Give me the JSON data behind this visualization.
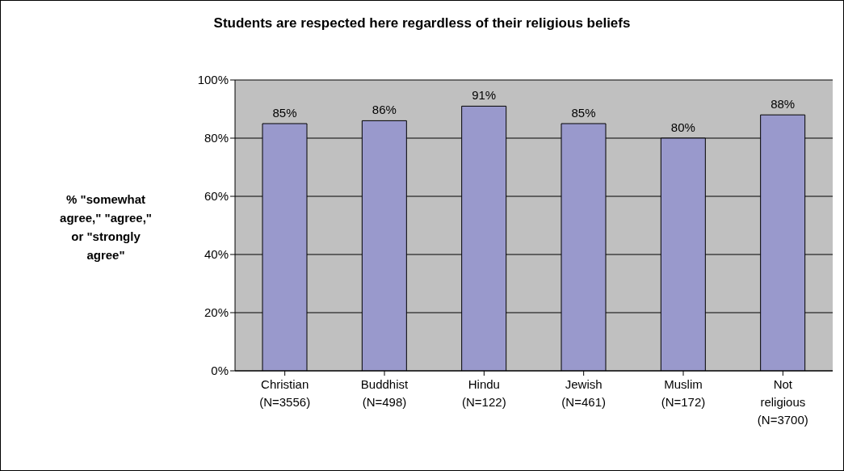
{
  "chart_data": {
    "type": "bar",
    "title": "Students are respected here regardless of their religious beliefs",
    "ylabel": "% \"somewhat\nagree,\" \"agree,\"\nor \"strongly\nagree\"",
    "categories": [
      "Christian\n(N=3556)",
      "Buddhist\n(N=498)",
      "Hindu\n(N=122)",
      "Jewish\n(N=461)",
      "Muslim\n(N=172)",
      "Not\nreligious\n(N=3700)"
    ],
    "values": [
      85,
      86,
      91,
      85,
      80,
      88
    ],
    "value_labels": [
      "85%",
      "86%",
      "91%",
      "85%",
      "80%",
      "88%"
    ],
    "color": "#9999cc",
    "ylim": [
      0,
      100
    ],
    "yticks": [
      {
        "value": 0,
        "label": "0%"
      },
      {
        "value": 20,
        "label": "20%"
      },
      {
        "value": 40,
        "label": "40%"
      },
      {
        "value": 60,
        "label": "60%"
      },
      {
        "value": 80,
        "label": "80%"
      },
      {
        "value": 100,
        "label": "100%"
      }
    ],
    "grid": "y"
  }
}
